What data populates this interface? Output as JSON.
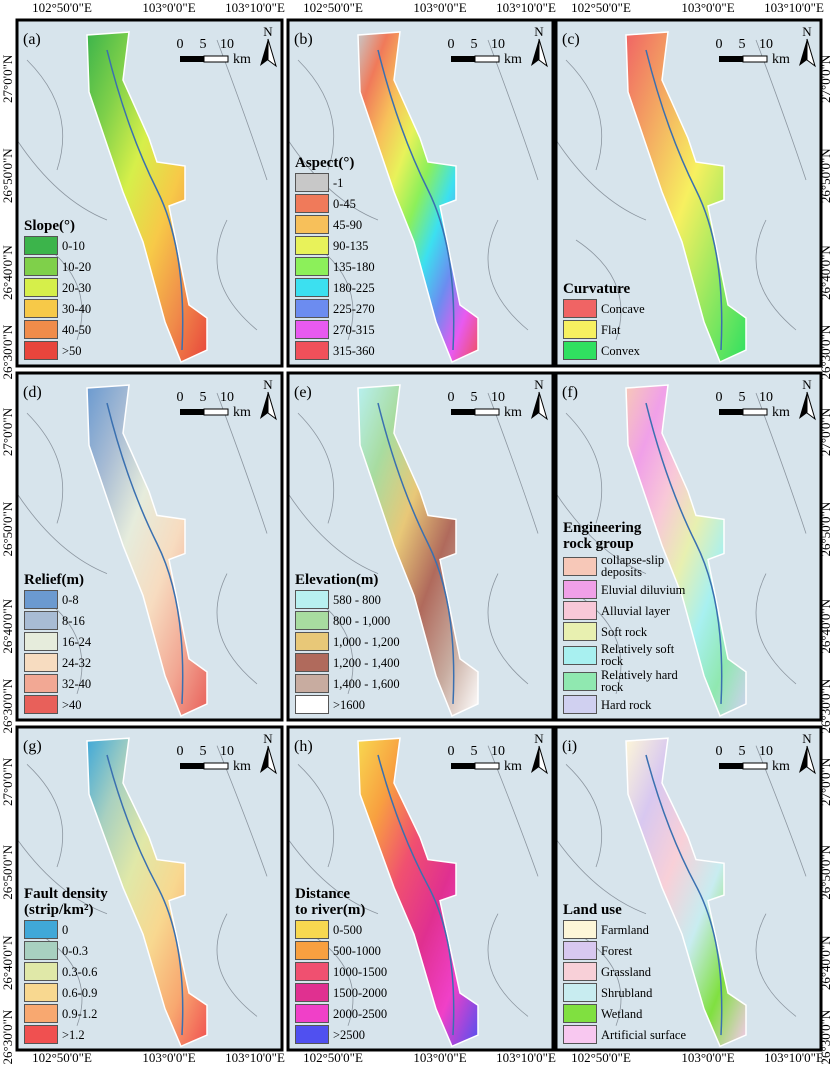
{
  "top_axis": [
    "102°50'0\"E",
    "103°0'0\"E",
    "103°10'0\"E"
  ],
  "bottom_axis": [
    "102°50'0\"E",
    "103°0'0\"E",
    "103°10'0\"E"
  ],
  "left_axis": [
    "27°0'0\"N",
    "26°50'0\"N",
    "26°40'0\"N",
    "26°30'0\"N"
  ],
  "right_axis": [
    "27°0'0\"N",
    "26°50'0\"N",
    "26°40'0\"N",
    "26°30'0\"N"
  ],
  "scale": {
    "ticks": [
      "0",
      "5",
      "10"
    ],
    "unit": "km"
  },
  "north": "N",
  "panels": [
    {
      "label": "(a)",
      "title_lines": [
        "Slope(°)"
      ],
      "items": [
        {
          "label": "0-10",
          "color": "#3cb44b"
        },
        {
          "label": "10-20",
          "color": "#7fd04a"
        },
        {
          "label": "20-30",
          "color": "#d6ef4a"
        },
        {
          "label": "30-40",
          "color": "#f7c948"
        },
        {
          "label": "40-50",
          "color": "#f08c4a"
        },
        {
          "label": ">50",
          "color": "#e8453c"
        }
      ]
    },
    {
      "label": "(b)",
      "title_lines": [
        "Aspect(°)"
      ],
      "items": [
        {
          "label": "-1",
          "color": "#c8c8c8"
        },
        {
          "label": "0-45",
          "color": "#f07a5a"
        },
        {
          "label": "45-90",
          "color": "#f7c05a"
        },
        {
          "label": "90-135",
          "color": "#e8f25a"
        },
        {
          "label": "135-180",
          "color": "#8cf05a"
        },
        {
          "label": "180-225",
          "color": "#3ce0f0"
        },
        {
          "label": "225-270",
          "color": "#6c8cf0"
        },
        {
          "label": "270-315",
          "color": "#e85af0"
        },
        {
          "label": "315-360",
          "color": "#f0505a"
        }
      ]
    },
    {
      "label": "(c)",
      "title_lines": [
        "Curvature"
      ],
      "items": [
        {
          "label": "Concave",
          "color": "#f06464"
        },
        {
          "label": "Flat",
          "color": "#f7f060"
        },
        {
          "label": "Convex",
          "color": "#30e060"
        }
      ]
    },
    {
      "label": "(d)",
      "title_lines": [
        "Relief(m)"
      ],
      "items": [
        {
          "label": "0-8",
          "color": "#6b9ad0"
        },
        {
          "label": "8-16",
          "color": "#a8bcd4"
        },
        {
          "label": "16-24",
          "color": "#e6ecdc"
        },
        {
          "label": "24-32",
          "color": "#f7dcc0"
        },
        {
          "label": "32-40",
          "color": "#f2a894"
        },
        {
          "label": ">40",
          "color": "#e8605a"
        }
      ]
    },
    {
      "label": "(e)",
      "title_lines": [
        "Elevation(m)"
      ],
      "items": [
        {
          "label": "580 - 800",
          "color": "#b8f0f0"
        },
        {
          "label": "800 - 1,000",
          "color": "#a8dca0"
        },
        {
          "label": "1,000 - 1,200",
          "color": "#e8c878"
        },
        {
          "label": "1,200 - 1,400",
          "color": "#b06a5c"
        },
        {
          "label": "1,400 - 1,600",
          "color": "#c8aca0"
        },
        {
          "label": ">1600",
          "color": "#ffffff"
        }
      ]
    },
    {
      "label": "(f)",
      "title_lines": [
        "Engineering",
        "rock group"
      ],
      "items": [
        {
          "label": "collapse-slip deposits",
          "color": "#f7c8b8"
        },
        {
          "label": "Eluvial diluvium",
          "color": "#f0a0e8"
        },
        {
          "label": "Alluvial layer",
          "color": "#f8c8d8"
        },
        {
          "label": "Soft rock",
          "color": "#e8f0b0"
        },
        {
          "label": "Relatively soft rock",
          "color": "#a8f0f0"
        },
        {
          "label": "Relatively hard rock",
          "color": "#90e8b0"
        },
        {
          "label": "Hard rock",
          "color": "#d0d0f0"
        }
      ]
    },
    {
      "label": "(g)",
      "title_lines": [
        "Fault density",
        "(strip/km²)"
      ],
      "items": [
        {
          "label": "0",
          "color": "#40a8d8"
        },
        {
          "label": "0-0.3",
          "color": "#a8d0c0"
        },
        {
          "label": "0.3-0.6",
          "color": "#e0e8a8"
        },
        {
          "label": "0.6-0.9",
          "color": "#f8d890"
        },
        {
          "label": "0.9-1.2",
          "color": "#f8a870"
        },
        {
          "label": ">1.2",
          "color": "#f05050"
        }
      ]
    },
    {
      "label": "(h)",
      "title_lines": [
        "Distance",
        "to river(m)"
      ],
      "items": [
        {
          "label": "0-500",
          "color": "#f8d850"
        },
        {
          "label": "500-1000",
          "color": "#f8a040"
        },
        {
          "label": "1000-1500",
          "color": "#f05070"
        },
        {
          "label": "1500-2000",
          "color": "#e03090"
        },
        {
          "label": "2000-2500",
          "color": "#f040c8"
        },
        {
          "label": ">2500",
          "color": "#5050f0"
        }
      ]
    },
    {
      "label": "(i)",
      "title_lines": [
        "Land use"
      ],
      "items": [
        {
          "label": "Farmland",
          "color": "#fdf6d8"
        },
        {
          "label": "Forest",
          "color": "#d8c8f0"
        },
        {
          "label": "Grassland",
          "color": "#f8d0d8"
        },
        {
          "label": "Shrubland",
          "color": "#c8ecf0"
        },
        {
          "label": "Wetland",
          "color": "#80e040"
        },
        {
          "label": "Artificial surface",
          "color": "#f8c8f0"
        }
      ]
    }
  ]
}
